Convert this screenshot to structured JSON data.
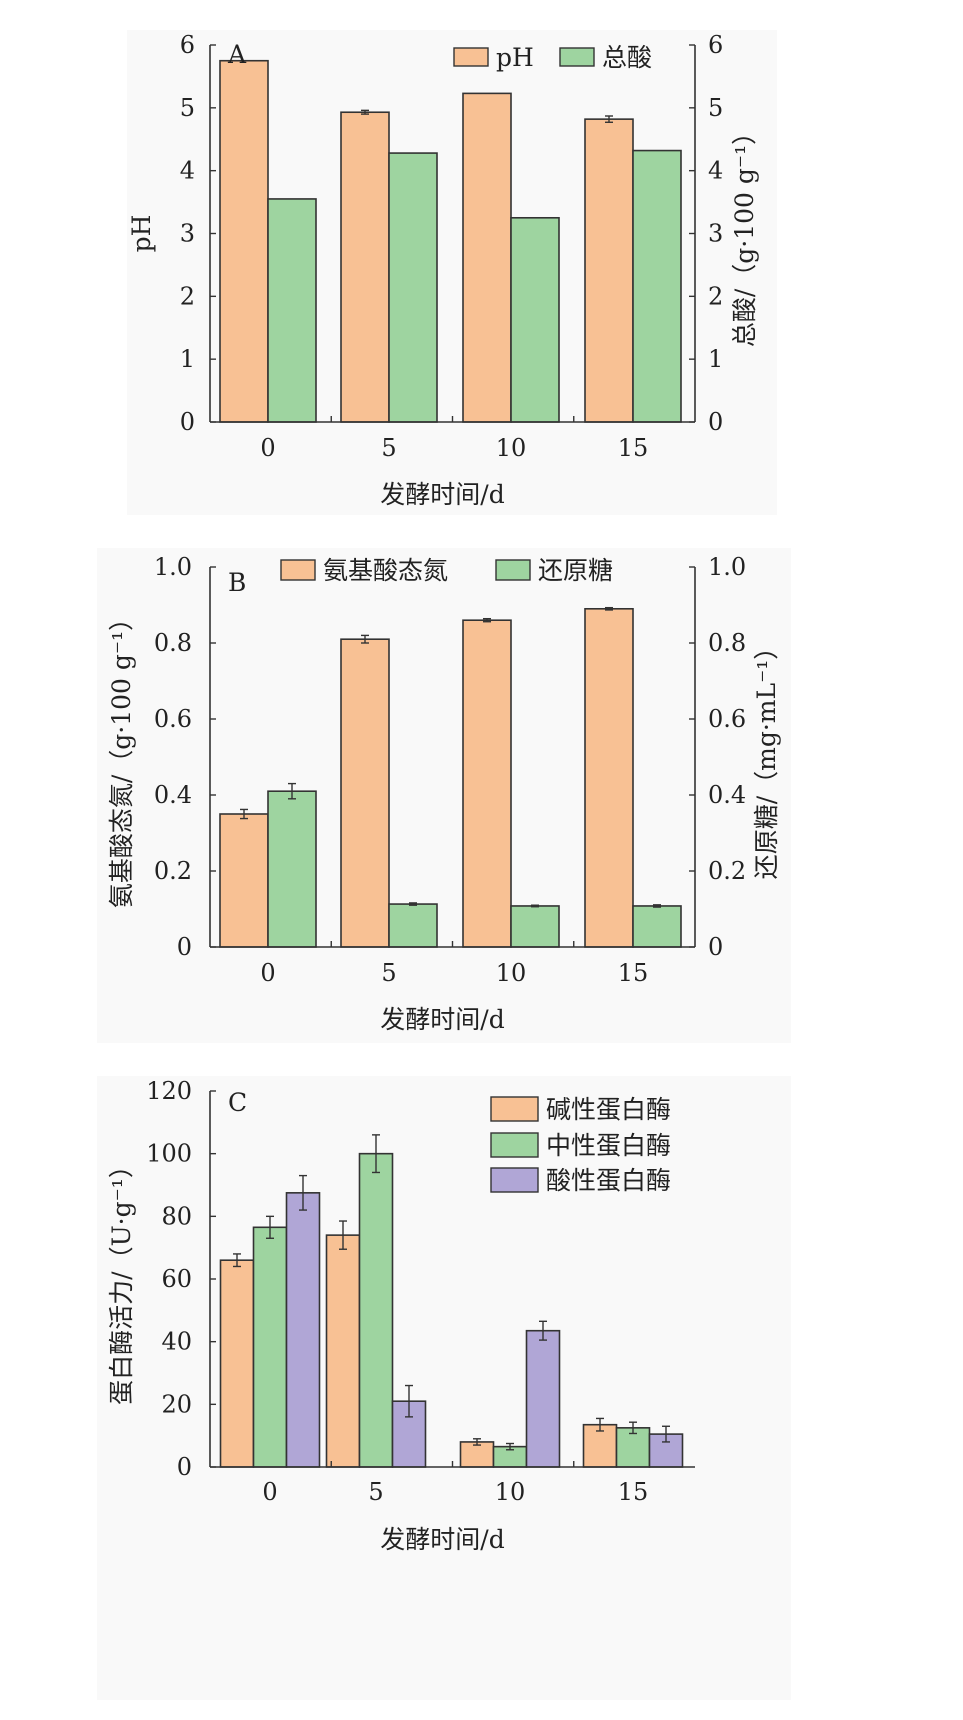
{
  "colors": {
    "orange": "#F8C194",
    "green": "#9ED4A0",
    "purple": "#B0A6D6"
  },
  "chart_data": [
    {
      "type": "bar",
      "panel_label": "A",
      "categories": [
        "0",
        "5",
        "10",
        "15"
      ],
      "xlabel": "发酵时间/d",
      "ylabel": "pH",
      "ylabel_right": "总酸/（g·100 g⁻¹）",
      "ylim": [
        0,
        6
      ],
      "yticks": [
        "0",
        "1",
        "2",
        "3",
        "4",
        "5",
        "6"
      ],
      "y2lim": [
        0,
        6
      ],
      "y2ticks": [
        "0",
        "1",
        "2",
        "3",
        "4",
        "5",
        "6"
      ],
      "legend_position": "top-right",
      "series": [
        {
          "name": "pH",
          "color": "#F8C194",
          "axis": "left",
          "values": [
            5.75,
            4.93,
            5.23,
            4.82
          ],
          "errors": [
            0,
            0.03,
            0,
            0.05
          ]
        },
        {
          "name": "总酸",
          "color": "#9ED4A0",
          "axis": "right",
          "values": [
            3.55,
            4.28,
            3.25,
            4.32
          ],
          "errors": [
            0,
            0,
            0,
            0
          ]
        }
      ]
    },
    {
      "type": "bar",
      "panel_label": "B",
      "categories": [
        "0",
        "5",
        "10",
        "15"
      ],
      "xlabel": "发酵时间/d",
      "ylabel": "氨基酸态氮/（g·100 g⁻¹）",
      "ylabel_right": "还原糖/（mg·mL⁻¹）",
      "ylim": [
        0,
        1.0
      ],
      "yticks": [
        "0",
        "0.2",
        "0.4",
        "0.6",
        "0.8",
        "1.0"
      ],
      "y2lim": [
        0,
        1.0
      ],
      "y2ticks": [
        "0",
        "0.2",
        "0.4",
        "0.6",
        "0.8",
        "1.0"
      ],
      "legend_position": "top",
      "series": [
        {
          "name": "氨基酸态氮",
          "color": "#F8C194",
          "axis": "left",
          "values": [
            0.35,
            0.81,
            0.86,
            0.89
          ],
          "errors": [
            0.012,
            0.01,
            0.004,
            0.003
          ]
        },
        {
          "name": "还原糖",
          "color": "#9ED4A0",
          "axis": "right",
          "values": [
            0.41,
            0.113,
            0.108,
            0.108
          ],
          "errors": [
            0.02,
            0.003,
            0.002,
            0.003
          ]
        }
      ]
    },
    {
      "type": "bar",
      "panel_label": "C",
      "categories": [
        "0",
        "5",
        "10",
        "15"
      ],
      "xlabel": "发酵时间/d",
      "ylabel": "蛋白酶活力/（U·g⁻¹）",
      "ylim": [
        0,
        120
      ],
      "yticks": [
        "0",
        "20",
        "40",
        "60",
        "80",
        "100",
        "120"
      ],
      "legend_position": "top-right",
      "series": [
        {
          "name": "碱性蛋白酶",
          "color": "#F8C194",
          "axis": "left",
          "values": [
            66,
            74,
            8,
            13.5
          ],
          "errors": [
            2,
            4.5,
            1,
            2
          ]
        },
        {
          "name": "中性蛋白酶",
          "color": "#9ED4A0",
          "axis": "left",
          "values": [
            76.5,
            100,
            6.5,
            12.5
          ],
          "errors": [
            3.5,
            6,
            1,
            1.8
          ]
        },
        {
          "name": "酸性蛋白酶",
          "color": "#B0A6D6",
          "axis": "left",
          "values": [
            87.5,
            21,
            43.5,
            10.5
          ],
          "errors": [
            5.5,
            5,
            3,
            2.5
          ]
        }
      ]
    }
  ]
}
